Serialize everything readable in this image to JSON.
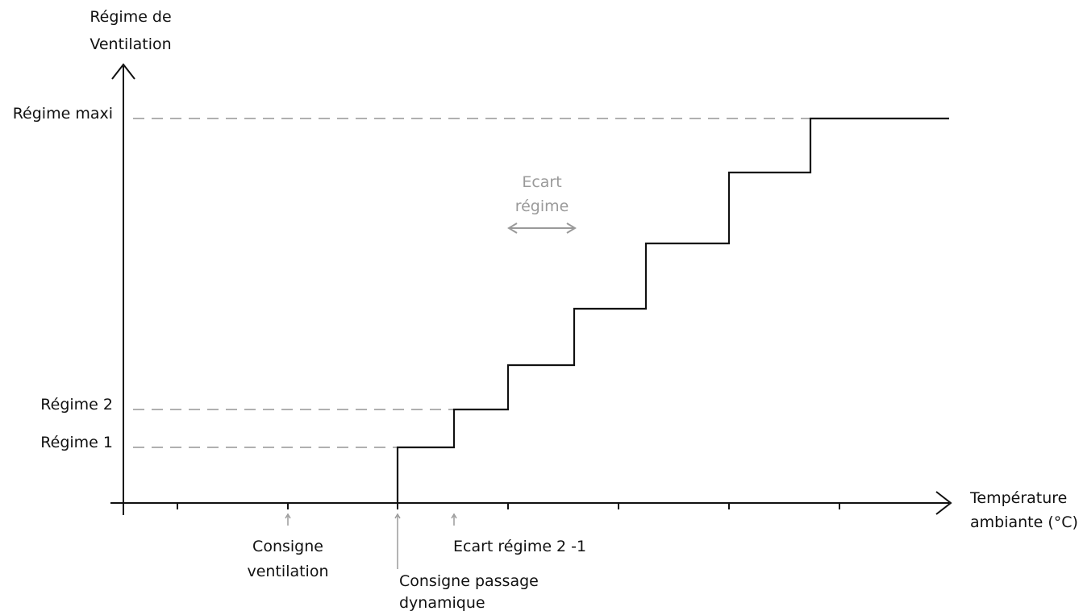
{
  "y_axis": {
    "title_line1": "Régime de",
    "title_line2": "Ventilation"
  },
  "x_axis": {
    "title_line1": "Température",
    "title_line2": "ambiante (°C)"
  },
  "levels": {
    "maxi": "Régime maxi",
    "regime2": "Régime 2",
    "regime1": "Régime 1"
  },
  "ecart_regime": {
    "line1": "Ecart",
    "line2": "régime"
  },
  "markers": {
    "consigne_ventilation": {
      "line1": "Consigne",
      "line2": "ventilation"
    },
    "consigne_passage": {
      "line1": "Consigne passage",
      "line2": "dynamique"
    },
    "ecart_regime_2_1": "Ecart régime 2 -1"
  },
  "colors": {
    "curve": "#111111",
    "guides": "#b0b0b0",
    "annotation": "#9a9a9a"
  }
}
